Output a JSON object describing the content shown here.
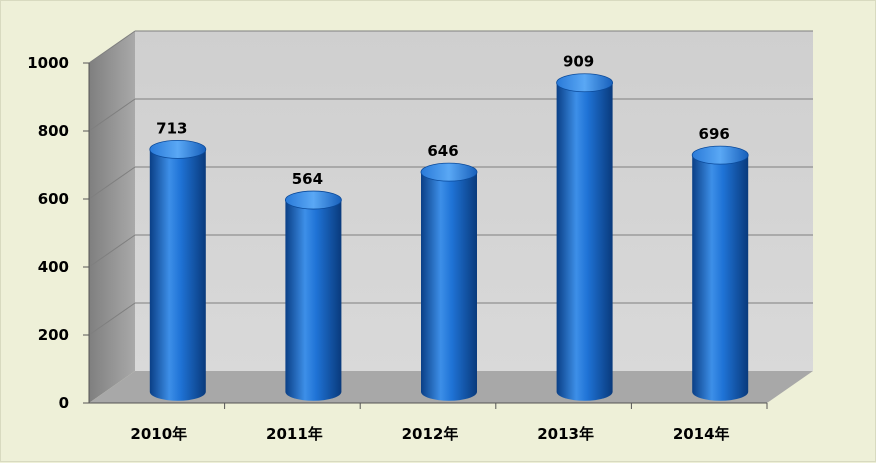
{
  "chart_data": {
    "type": "bar",
    "style": "3d-cylinder",
    "categories": [
      "2010年",
      "2011年",
      "2012年",
      "2013年",
      "2014年"
    ],
    "values": [
      713,
      564,
      646,
      909,
      696
    ],
    "data_labels": [
      "713",
      "564",
      "646",
      "909",
      "696"
    ],
    "title": "",
    "xlabel": "",
    "ylabel": "",
    "ylim": [
      0,
      1000
    ],
    "yticks": [
      "0",
      "200",
      "400",
      "600",
      "800",
      "1000"
    ],
    "grid": true,
    "legend": "none",
    "colors": {
      "bar": "#1466c8",
      "bar_dark": "#0a3f86",
      "bar_light": "#5aa8f5",
      "background": "#eef0d8",
      "wall": "#d0d0d0",
      "wall_dark": "#8a8a8a",
      "floor": "#a8a8a8",
      "grid": "#7f7f7f"
    }
  }
}
